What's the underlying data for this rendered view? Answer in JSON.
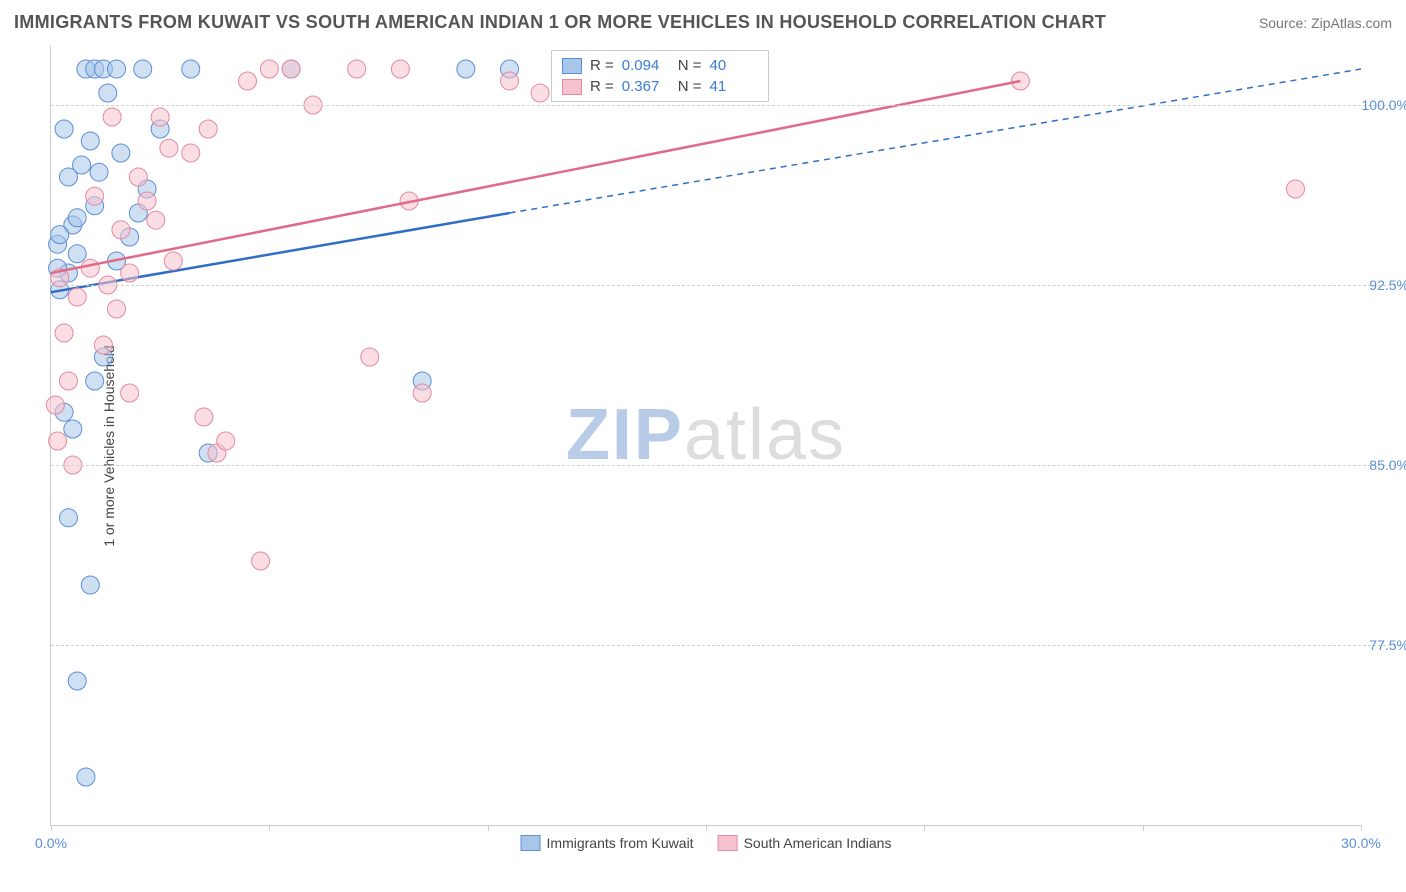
{
  "title": "IMMIGRANTS FROM KUWAIT VS SOUTH AMERICAN INDIAN 1 OR MORE VEHICLES IN HOUSEHOLD CORRELATION CHART",
  "source_label": "Source:",
  "source_name": "ZipAtlas.com",
  "y_axis_label": "1 or more Vehicles in Household",
  "watermark_a": "ZIP",
  "watermark_b": "atlas",
  "colors": {
    "blue_fill": "#a8c6ea",
    "blue_stroke": "#5b8fd6",
    "blue_line": "#2f6ec4",
    "pink_fill": "#f6c2ce",
    "pink_stroke": "#e38aa0",
    "pink_line": "#e06b86",
    "grid": "#d0d0d0",
    "axis": "#cccccc",
    "tick_text": "#5b8fd6",
    "title_text": "#555555",
    "source_text": "#777777"
  },
  "chart": {
    "type": "scatter",
    "xlim": [
      0,
      30
    ],
    "ylim": [
      70,
      102.5
    ],
    "x_ticks": [
      0,
      5,
      10,
      15,
      20,
      25,
      30
    ],
    "x_tick_labels": {
      "0": "0.0%",
      "30": "30.0%"
    },
    "y_ticks": [
      77.5,
      85.0,
      92.5,
      100.0
    ],
    "y_tick_labels": [
      "77.5%",
      "85.0%",
      "92.5%",
      "100.0%"
    ],
    "marker_radius": 9,
    "marker_opacity": 0.55,
    "line_width": 2.5,
    "series": [
      {
        "name": "Immigrants from Kuwait",
        "color_key": "blue",
        "R": "0.094",
        "N": "40",
        "points": [
          [
            0.2,
            92.3
          ],
          [
            0.4,
            93.0
          ],
          [
            0.5,
            95.0
          ],
          [
            0.6,
            95.3
          ],
          [
            0.7,
            97.5
          ],
          [
            0.8,
            101.5
          ],
          [
            1.0,
            101.5
          ],
          [
            1.2,
            101.5
          ],
          [
            1.5,
            101.5
          ],
          [
            2.1,
            101.5
          ],
          [
            3.2,
            101.5
          ],
          [
            5.5,
            101.5
          ],
          [
            9.5,
            101.5
          ],
          [
            10.5,
            101.5
          ],
          [
            0.3,
            87.2
          ],
          [
            0.5,
            86.5
          ],
          [
            1.0,
            88.5
          ],
          [
            1.2,
            89.5
          ],
          [
            1.5,
            93.5
          ],
          [
            1.8,
            94.5
          ],
          [
            2.0,
            95.5
          ],
          [
            2.2,
            96.5
          ],
          [
            2.5,
            99.0
          ],
          [
            0.4,
            82.8
          ],
          [
            0.9,
            80.0
          ],
          [
            3.6,
            85.5
          ],
          [
            0.6,
            76.0
          ],
          [
            0.8,
            72.0
          ],
          [
            8.5,
            88.5
          ],
          [
            0.3,
            99.0
          ],
          [
            0.15,
            94.2
          ],
          [
            0.15,
            93.2
          ],
          [
            0.6,
            93.8
          ],
          [
            0.2,
            94.6
          ],
          [
            0.4,
            97.0
          ],
          [
            0.9,
            98.5
          ],
          [
            1.1,
            97.2
          ],
          [
            1.0,
            95.8
          ],
          [
            1.3,
            100.5
          ],
          [
            1.6,
            98.0
          ]
        ],
        "trend_solid": {
          "x1": 0,
          "y1": 92.2,
          "x2": 10.5,
          "y2": 95.5
        },
        "trend_dashed": {
          "x1": 10.5,
          "y1": 95.5,
          "x2": 30,
          "y2": 101.5
        }
      },
      {
        "name": "South American Indians",
        "color_key": "pink",
        "R": "0.367",
        "N": "41",
        "points": [
          [
            0.15,
            86.0
          ],
          [
            0.5,
            85.0
          ],
          [
            1.2,
            90.0
          ],
          [
            1.5,
            91.5
          ],
          [
            1.8,
            93.0
          ],
          [
            2.0,
            97.0
          ],
          [
            2.2,
            96.0
          ],
          [
            2.5,
            99.5
          ],
          [
            3.5,
            87.0
          ],
          [
            3.8,
            85.5
          ],
          [
            4.5,
            101.0
          ],
          [
            5.0,
            101.5
          ],
          [
            6.0,
            100.0
          ],
          [
            7.0,
            101.5
          ],
          [
            8.0,
            101.5
          ],
          [
            7.3,
            89.5
          ],
          [
            8.2,
            96.0
          ],
          [
            8.5,
            88.0
          ],
          [
            10.5,
            101.0
          ],
          [
            11.2,
            100.5
          ],
          [
            22.2,
            101.0
          ],
          [
            28.5,
            96.5
          ],
          [
            0.9,
            93.2
          ],
          [
            1.3,
            92.5
          ],
          [
            1.6,
            94.8
          ],
          [
            2.4,
            95.2
          ],
          [
            2.7,
            98.2
          ],
          [
            2.8,
            93.5
          ],
          [
            3.2,
            98.0
          ],
          [
            3.6,
            99.0
          ],
          [
            0.3,
            90.5
          ],
          [
            0.6,
            92.0
          ],
          [
            4.0,
            86.0
          ],
          [
            4.8,
            81.0
          ],
          [
            1.8,
            88.0
          ],
          [
            0.4,
            88.5
          ],
          [
            0.2,
            92.8
          ],
          [
            1.0,
            96.2
          ],
          [
            1.4,
            99.5
          ],
          [
            5.5,
            101.5
          ],
          [
            0.1,
            87.5
          ]
        ],
        "trend_solid": {
          "x1": 0,
          "y1": 93.0,
          "x2": 22.2,
          "y2": 101.0
        },
        "trend_dashed": null
      }
    ]
  },
  "legend_top": {
    "rows": [
      {
        "swatch": "blue",
        "r_label": "R =",
        "r_val": "0.094",
        "n_label": "N =",
        "n_val": "40"
      },
      {
        "swatch": "pink",
        "r_label": "R =",
        "r_val": "0.367",
        "n_label": "N =",
        "n_val": "41"
      }
    ]
  },
  "legend_bottom": [
    {
      "swatch": "blue",
      "label": "Immigrants from Kuwait"
    },
    {
      "swatch": "pink",
      "label": "South American Indians"
    }
  ]
}
